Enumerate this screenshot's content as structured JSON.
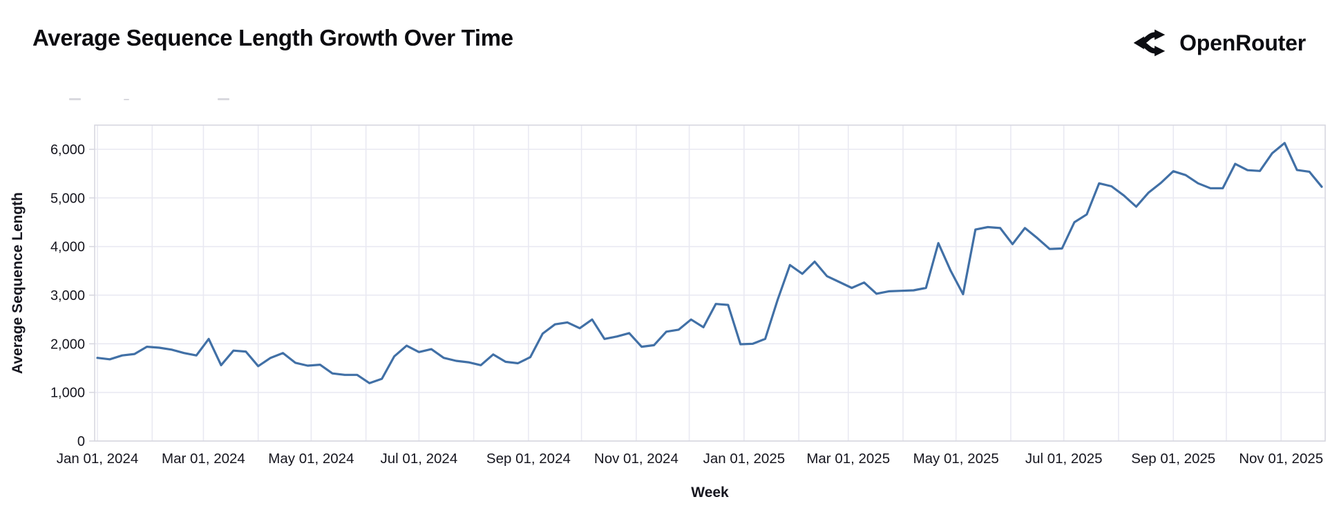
{
  "header": {
    "title": "Average Sequence Length Growth Over Time",
    "brand": "OpenRouter"
  },
  "chart_data": {
    "type": "line",
    "title": "Average Sequence Length Growth Over Time",
    "xlabel": "Week",
    "ylabel": "Average Sequence Length",
    "x_start_date": "2024-01-01",
    "x_step_days": 7,
    "x_tick_labels": [
      "Jan 01, 2024",
      "Mar 01, 2024",
      "May 01, 2024",
      "Jul 01, 2024",
      "Sep 01, 2024",
      "Nov 01, 2024",
      "Jan 01, 2025",
      "Mar 01, 2025",
      "May 01, 2025",
      "Jul 01, 2025",
      "Sep 01, 2025",
      "Nov 01, 2025"
    ],
    "y_ticks": [
      0,
      1000,
      2000,
      3000,
      4000,
      5000,
      6000
    ],
    "ylim": [
      0,
      6500
    ],
    "grid": true,
    "legend_position": "none",
    "line_color": "#4170a6",
    "grid_color": "#e9e9f2",
    "border_color": "#d7d7e0",
    "tick_label_color": "#16161f",
    "series": [
      {
        "name": "Average Sequence Length",
        "values": [
          1710,
          1680,
          1760,
          1790,
          1940,
          1920,
          1880,
          1810,
          1760,
          2100,
          1560,
          1860,
          1840,
          1540,
          1710,
          1810,
          1610,
          1550,
          1570,
          1390,
          1360,
          1360,
          1190,
          1280,
          1740,
          1960,
          1830,
          1890,
          1710,
          1650,
          1620,
          1560,
          1780,
          1630,
          1600,
          1725,
          2210,
          2400,
          2440,
          2320,
          2500,
          2100,
          2150,
          2220,
          1940,
          1970,
          2250,
          2290,
          2500,
          2340,
          2820,
          2800,
          1990,
          2000,
          2100,
          2900,
          3620,
          3440,
          3690,
          3390,
          3270,
          3150,
          3260,
          3030,
          3080,
          3090,
          3100,
          3150,
          4070,
          3500,
          3020,
          4350,
          4400,
          4380,
          4050,
          4380,
          4175,
          3950,
          3960,
          4500,
          4660,
          5300,
          5240,
          5050,
          4820,
          5110,
          5310,
          5550,
          5470,
          5300,
          5200,
          5200,
          5700,
          5570,
          5555,
          5920,
          6130,
          5575,
          5540,
          5230
        ]
      }
    ]
  }
}
